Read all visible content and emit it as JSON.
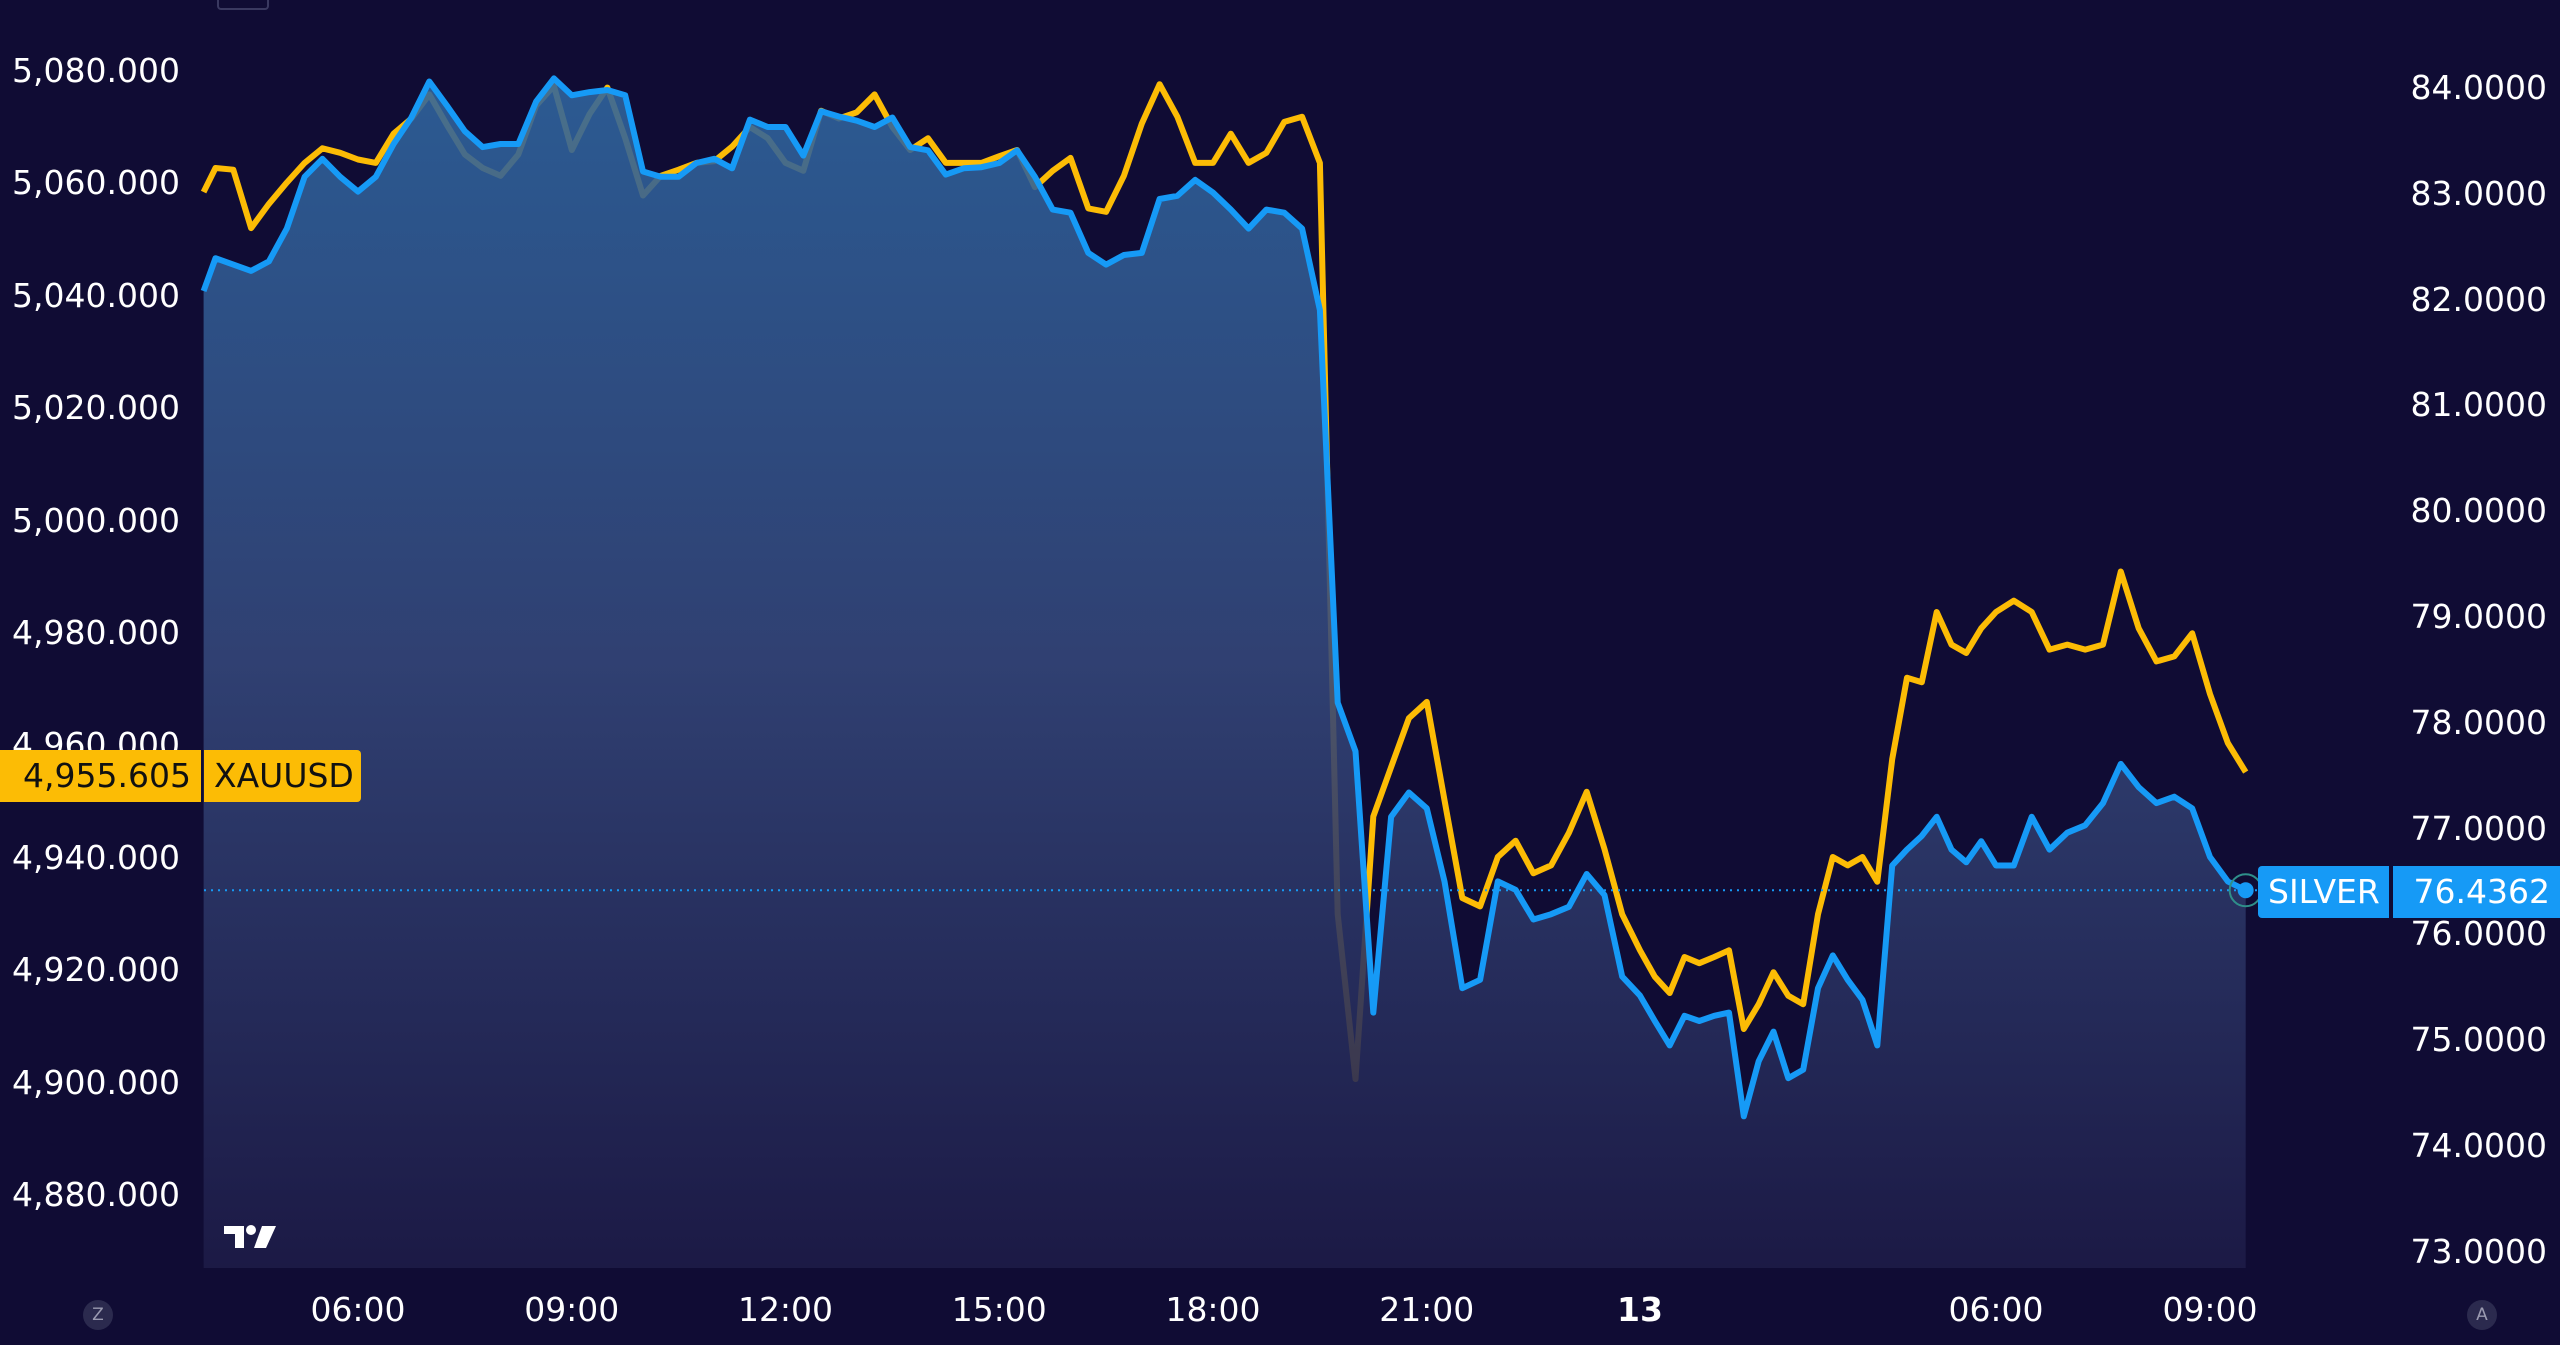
{
  "chart_data": {
    "type": "line",
    "title": "",
    "grid": false,
    "legend": "none",
    "x_ticks": [
      {
        "label": "06:00",
        "t": "12 06:00"
      },
      {
        "label": "09:00",
        "t": "12 09:00"
      },
      {
        "label": "12:00",
        "t": "12 12:00"
      },
      {
        "label": "15:00",
        "t": "12 15:00"
      },
      {
        "label": "18:00",
        "t": "12 18:00"
      },
      {
        "label": "21:00",
        "t": "12 21:00"
      },
      {
        "label": "13",
        "t": "13 00:00",
        "bold": true
      },
      {
        "label": "06:00",
        "t": "13 06:00"
      },
      {
        "label": "09:00",
        "t": "13 09:00"
      }
    ],
    "left_axis": {
      "ylim": [
        4860,
        5090
      ],
      "tick_labels": [
        "5,080.000",
        "5,060.000",
        "5,040.000",
        "5,020.000",
        "5,000.000",
        "4,980.000",
        "4,960.000",
        "4,940.000",
        "4,920.000",
        "4,900.000",
        "4,880.000"
      ],
      "tick_values": [
        5080,
        5060,
        5040,
        5020,
        5000,
        4980,
        4960,
        4940,
        4920,
        4900,
        4880
      ]
    },
    "right_axis": {
      "ylim": [
        72.8,
        84.3
      ],
      "tick_labels": [
        "84.0000",
        "83.0000",
        "82.0000",
        "81.0000",
        "80.0000",
        "79.0000",
        "78.0000",
        "77.0000",
        "76.0000",
        "75.0000",
        "74.0000",
        "73.0000"
      ],
      "tick_values": [
        84,
        83,
        82,
        81,
        80,
        79,
        78,
        77,
        76,
        75,
        74,
        73
      ]
    },
    "times": [
      "12 03:50",
      "12 04:00",
      "12 04:15",
      "12 04:30",
      "12 04:45",
      "12 05:00",
      "12 05:15",
      "12 05:30",
      "12 05:45",
      "12 06:00",
      "12 06:15",
      "12 06:30",
      "12 06:45",
      "12 07:00",
      "12 07:15",
      "12 07:30",
      "12 07:45",
      "12 08:00",
      "12 08:15",
      "12 08:30",
      "12 08:45",
      "12 09:00",
      "12 09:15",
      "12 09:30",
      "12 09:45",
      "12 10:00",
      "12 10:15",
      "12 10:30",
      "12 10:45",
      "12 11:00",
      "12 11:15",
      "12 11:30",
      "12 11:45",
      "12 12:00",
      "12 12:15",
      "12 12:30",
      "12 12:45",
      "12 13:00",
      "12 13:15",
      "12 13:30",
      "12 13:45",
      "12 14:00",
      "12 14:15",
      "12 14:30",
      "12 14:45",
      "12 15:00",
      "12 15:15",
      "12 15:30",
      "12 15:45",
      "12 16:00",
      "12 16:15",
      "12 16:30",
      "12 16:45",
      "12 17:00",
      "12 17:15",
      "12 17:30",
      "12 17:45",
      "12 18:00",
      "12 18:15",
      "12 18:30",
      "12 18:45",
      "12 19:00",
      "12 19:15",
      "12 19:30",
      "12 19:45",
      "12 20:00",
      "12 20:15",
      "12 20:30",
      "12 20:45",
      "12 21:00",
      "12 21:15",
      "12 21:30",
      "12 21:45",
      "12 22:00",
      "12 22:15",
      "12 22:30",
      "12 22:45",
      "12 23:00",
      "12 23:15",
      "12 23:30",
      "12 23:45",
      "13 00:00",
      "13 00:15",
      "13 00:30",
      "13 00:45",
      "13 01:00",
      "13 01:15",
      "13 01:30",
      "13 01:45",
      "13 02:00",
      "13 02:15",
      "13 02:30",
      "13 02:45",
      "13 03:00",
      "13 03:15",
      "13 03:30",
      "13 03:45",
      "13 04:00",
      "13 04:15",
      "13 04:30",
      "13 04:45",
      "13 05:00",
      "13 05:15",
      "13 05:30",
      "13 05:45",
      "13 06:00",
      "13 06:15",
      "13 06:30",
      "13 06:45",
      "13 07:00",
      "13 07:15",
      "13 07:30",
      "13 07:45",
      "13 08:00",
      "13 08:15",
      "13 08:30",
      "13 08:45",
      "13 09:00",
      "13 09:15",
      "13 09:30"
    ],
    "series": [
      {
        "name": "XAUUSD",
        "axis": "left",
        "color": "#fcbc05",
        "last_value_label": "4,955.605",
        "values": [
          5058.8,
          5063.1,
          5062.8,
          5052.4,
          5056.7,
          5060.5,
          5064.0,
          5066.6,
          5065.8,
          5064.6,
          5064.0,
          5069.2,
          5071.9,
          5076.2,
          5070.7,
          5065.5,
          5063.1,
          5061.7,
          5065.5,
          5074.2,
          5077.7,
          5066.3,
          5072.7,
          5077.4,
          5068.4,
          5058.2,
          5061.7,
          5062.8,
          5064.0,
          5064.3,
          5066.9,
          5070.4,
          5068.4,
          5064.0,
          5062.6,
          5073.3,
          5071.9,
          5073.0,
          5076.2,
          5070.4,
          5066.3,
          5068.4,
          5064.0,
          5064.0,
          5064.0,
          5065.2,
          5066.3,
          5059.7,
          5062.6,
          5064.9,
          5055.9,
          5055.3,
          5061.7,
          5071.0,
          5078.0,
          5072.2,
          5064.0,
          5064.0,
          5069.2,
          5064.0,
          5065.8,
          5071.3,
          5072.2,
          5064.0,
          4930.3,
          4901.0,
          4947.7,
          4956.5,
          4965.2,
          4968.1,
          4950.6,
          4933.2,
          4931.7,
          4940.5,
          4943.4,
          4937.6,
          4939.0,
          4944.8,
          4952.1,
          4941.9,
          4930.3,
          4923.9,
          4919.2,
          4916.3,
          4922.7,
          4921.6,
          4922.7,
          4923.9,
          4909.9,
          4914.3,
          4920.0,
          4915.8,
          4914.3,
          4930.3,
          4940.5,
          4939.0,
          4940.5,
          4936.1,
          4957.9,
          4972.4,
          4971.6,
          4984.1,
          4978.3,
          4976.8,
          4981.2,
          4984.1,
          4986.1,
          4984.1,
          4977.4,
          4978.3,
          4977.4,
          4978.3,
          4991.3,
          4981.2,
          4975.3,
          4976.2,
          4980.3,
          4969.5,
          4960.8,
          4955.605
        ]
      },
      {
        "name": "SILVER",
        "axis": "right",
        "color": "#169af6",
        "last_value_label": "76.4362",
        "values": [
          82.1,
          82.41,
          82.35,
          82.29,
          82.38,
          82.69,
          83.18,
          83.35,
          83.18,
          83.04,
          83.18,
          83.49,
          83.74,
          84.08,
          83.85,
          83.61,
          83.46,
          83.49,
          83.49,
          83.89,
          84.11,
          83.95,
          83.98,
          84.0,
          83.95,
          83.23,
          83.18,
          83.18,
          83.31,
          83.35,
          83.26,
          83.72,
          83.65,
          83.65,
          83.38,
          83.8,
          83.75,
          83.71,
          83.65,
          83.74,
          83.46,
          83.43,
          83.2,
          83.26,
          83.27,
          83.31,
          83.43,
          83.18,
          82.87,
          82.84,
          82.46,
          82.35,
          82.44,
          82.46,
          82.97,
          83.0,
          83.15,
          83.03,
          82.87,
          82.69,
          82.87,
          82.84,
          82.69,
          81.92,
          78.21,
          77.75,
          75.28,
          77.13,
          77.36,
          77.21,
          76.52,
          75.51,
          75.59,
          76.52,
          76.44,
          76.16,
          76.21,
          76.28,
          76.59,
          76.39,
          75.62,
          75.44,
          75.2,
          74.97,
          75.25,
          75.2,
          75.25,
          75.28,
          74.3,
          74.82,
          75.1,
          74.66,
          74.74,
          75.51,
          75.82,
          75.59,
          75.4,
          74.97,
          76.67,
          76.82,
          76.95,
          77.13,
          76.82,
          76.7,
          76.9,
          76.67,
          76.67,
          77.13,
          76.82,
          76.98,
          77.05,
          77.26,
          77.63,
          77.41,
          77.26,
          77.32,
          77.21,
          76.75,
          76.52,
          76.4362
        ]
      }
    ]
  },
  "corner_buttons": {
    "left": "Z",
    "right": "A"
  }
}
